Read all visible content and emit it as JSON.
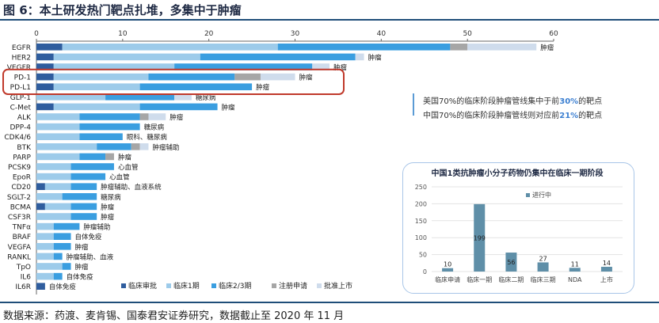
{
  "figure": {
    "title": "图 6：本土研发热门靶点扎堆，多集中于肿瘤",
    "source": "数据来源：药渡、麦肯锡、国泰君安证券研究，数据截止至 2020 年 11 月",
    "callout_lines": [
      {
        "before": "美国70%的临床阶段肿瘤管线集中于前",
        "highlight": "30%",
        "after": "的靶点"
      },
      {
        "before": "中国70%的临床阶段肿瘤管线则对应前",
        "highlight": "21%",
        "after": "的靶点"
      }
    ]
  },
  "colors": {
    "stage_colors": [
      "#2f5d9e",
      "#9dcbea",
      "#3a9ee0",
      "#a6a6a6",
      "#cfdcec"
    ],
    "highlight_box": "#c0392b",
    "inset_bar": "#5f8fa8",
    "accent_text": "#3b7fd1"
  },
  "chart_data": [
    {
      "type": "bar",
      "orientation": "horizontal",
      "stacked": true,
      "xlim": [
        0,
        60
      ],
      "xticks": [
        0,
        10,
        20,
        30,
        40,
        50,
        60
      ],
      "legend_position": "bottom",
      "series_names": [
        "临床审批",
        "临床1期",
        "临床2/3期",
        "注册申请",
        "批准上市"
      ],
      "highlighted_categories": [
        "PD-1",
        "PD-L1"
      ],
      "rows": [
        {
          "target": "EGFR",
          "values": [
            3,
            25,
            20,
            2,
            8
          ],
          "annotation": "肿瘤"
        },
        {
          "target": "HER2",
          "values": [
            2,
            17,
            18,
            0,
            1
          ],
          "annotation": "肿瘤"
        },
        {
          "target": "VEGFR",
          "values": [
            2,
            14,
            16,
            0,
            2
          ],
          "annotation": "肿瘤"
        },
        {
          "target": "PD-1",
          "values": [
            2,
            11,
            10,
            3,
            4
          ],
          "annotation": "肿瘤"
        },
        {
          "target": "PD-L1",
          "values": [
            2,
            10,
            13,
            0,
            0
          ],
          "annotation": "肿瘤"
        },
        {
          "target": "GLP-1",
          "values": [
            0,
            8,
            8,
            0,
            2
          ],
          "annotation": "糖尿病"
        },
        {
          "target": "C-Met",
          "values": [
            2,
            10,
            9,
            0,
            0
          ],
          "annotation": "肿瘤"
        },
        {
          "target": "ALK",
          "values": [
            0,
            5,
            7,
            1,
            2
          ],
          "annotation": "肿瘤"
        },
        {
          "target": "DPP-4",
          "values": [
            0,
            5,
            7,
            0,
            0
          ],
          "annotation": "糖尿病"
        },
        {
          "target": "CDK4/6",
          "values": [
            0,
            5,
            5,
            0,
            0
          ],
          "annotation": "眼科、糖尿病"
        },
        {
          "target": "BTK",
          "values": [
            0,
            7,
            4,
            1,
            1
          ],
          "annotation": "肿瘤辅助"
        },
        {
          "target": "PARP",
          "values": [
            0,
            5,
            3,
            1,
            0
          ],
          "annotation": "肿瘤"
        },
        {
          "target": "PCSK9",
          "values": [
            0,
            4,
            5,
            0,
            0
          ],
          "annotation": "心血管"
        },
        {
          "target": "EpoR",
          "values": [
            0,
            4,
            4,
            0,
            0
          ],
          "annotation": "心血管"
        },
        {
          "target": "CD20",
          "values": [
            1,
            3,
            3,
            0,
            0
          ],
          "annotation": "肿瘤辅助、血液系统"
        },
        {
          "target": "SGLT-2",
          "values": [
            0,
            3,
            4,
            0,
            0
          ],
          "annotation": "糖尿病"
        },
        {
          "target": "BCMA",
          "values": [
            1,
            3,
            3,
            0,
            0
          ],
          "annotation": "肿瘤"
        },
        {
          "target": "CSF3R",
          "values": [
            0,
            4,
            3,
            0,
            0
          ],
          "annotation": "肿瘤"
        },
        {
          "target": "TNFα",
          "values": [
            0,
            2,
            3,
            0,
            0
          ],
          "annotation": "肿瘤辅助"
        },
        {
          "target": "BRAF",
          "values": [
            0,
            2,
            2,
            0,
            0
          ],
          "annotation": "自体免疫"
        },
        {
          "target": "VEGFA",
          "values": [
            0,
            2,
            2,
            0,
            0
          ],
          "annotation": "肿瘤"
        },
        {
          "target": "RANKL",
          "values": [
            0,
            2,
            1,
            0,
            0
          ],
          "annotation": "肿瘤辅助、血液"
        },
        {
          "target": "TpO",
          "values": [
            0,
            3,
            1,
            0,
            0
          ],
          "annotation": "肿瘤"
        },
        {
          "target": "IL6",
          "values": [
            0,
            2,
            1,
            0,
            0
          ],
          "annotation": "自体免疫"
        },
        {
          "target": "IL6R",
          "values": [
            1,
            0,
            0,
            0,
            0
          ],
          "annotation": "自体免疫"
        }
      ]
    },
    {
      "type": "bar",
      "title": "中国1类抗肿瘤小分子药物仍集中在临床一期阶段",
      "legend": [
        "进行中"
      ],
      "ylim": [
        0,
        250
      ],
      "yticks": [
        0,
        50,
        100,
        150,
        200,
        250
      ],
      "categories": [
        "临床申请",
        "临床一期",
        "临床二期",
        "临床三期",
        "NDA",
        "上市"
      ],
      "values": [
        10,
        199,
        56,
        27,
        11,
        14
      ]
    }
  ]
}
